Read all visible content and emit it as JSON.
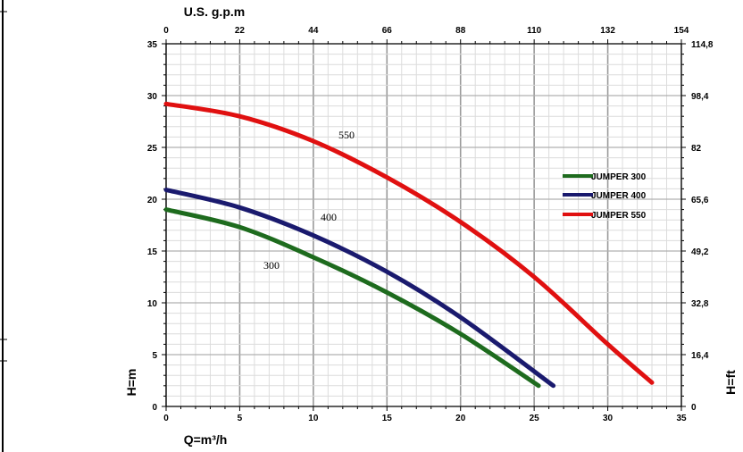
{
  "chart_data": {
    "type": "line",
    "x_bottom": {
      "label": "Q=m³/h",
      "range": [
        0,
        35
      ],
      "ticks": [
        "0",
        "5",
        "10",
        "15",
        "20",
        "25",
        "30",
        "35"
      ]
    },
    "x_top": {
      "label": "U.S. g.p.m",
      "range": [
        0,
        154
      ],
      "ticks": [
        "0",
        "22",
        "44",
        "66",
        "88",
        "110",
        "132",
        "154"
      ]
    },
    "y_left": {
      "label": "H=m",
      "range": [
        0,
        35
      ],
      "ticks": [
        "0",
        "5",
        "10",
        "15",
        "20",
        "25",
        "30",
        "35"
      ]
    },
    "y_right": {
      "label": "H=ft",
      "range": [
        0,
        114.8
      ],
      "ticks": [
        "0",
        "16,4",
        "32,8",
        "49,2",
        "65,6",
        "82",
        "98,4",
        "114,8"
      ]
    },
    "grid": true,
    "legend_position": "right",
    "series": [
      {
        "name": "JUMPER 300",
        "label": "300",
        "color": "#1e6b1e",
        "points": [
          [
            0,
            19.0
          ],
          [
            5,
            17.3
          ],
          [
            10,
            14.4
          ],
          [
            15,
            11.0
          ],
          [
            20,
            7.0
          ],
          [
            25.3,
            2.0
          ]
        ]
      },
      {
        "name": "JUMPER 400",
        "label": "400",
        "color": "#1a1a6e",
        "points": [
          [
            0,
            20.9
          ],
          [
            5,
            19.2
          ],
          [
            10,
            16.5
          ],
          [
            15,
            13.0
          ],
          [
            20,
            8.6
          ],
          [
            26.3,
            2.0
          ]
        ]
      },
      {
        "name": "JUMPER 550",
        "label": "550",
        "color": "#e01010",
        "points": [
          [
            0,
            29.2
          ],
          [
            5,
            28.0
          ],
          [
            10,
            25.6
          ],
          [
            15,
            22.1
          ],
          [
            20,
            17.8
          ],
          [
            25,
            12.5
          ],
          [
            30,
            6.0
          ],
          [
            33,
            2.3
          ]
        ]
      }
    ]
  }
}
